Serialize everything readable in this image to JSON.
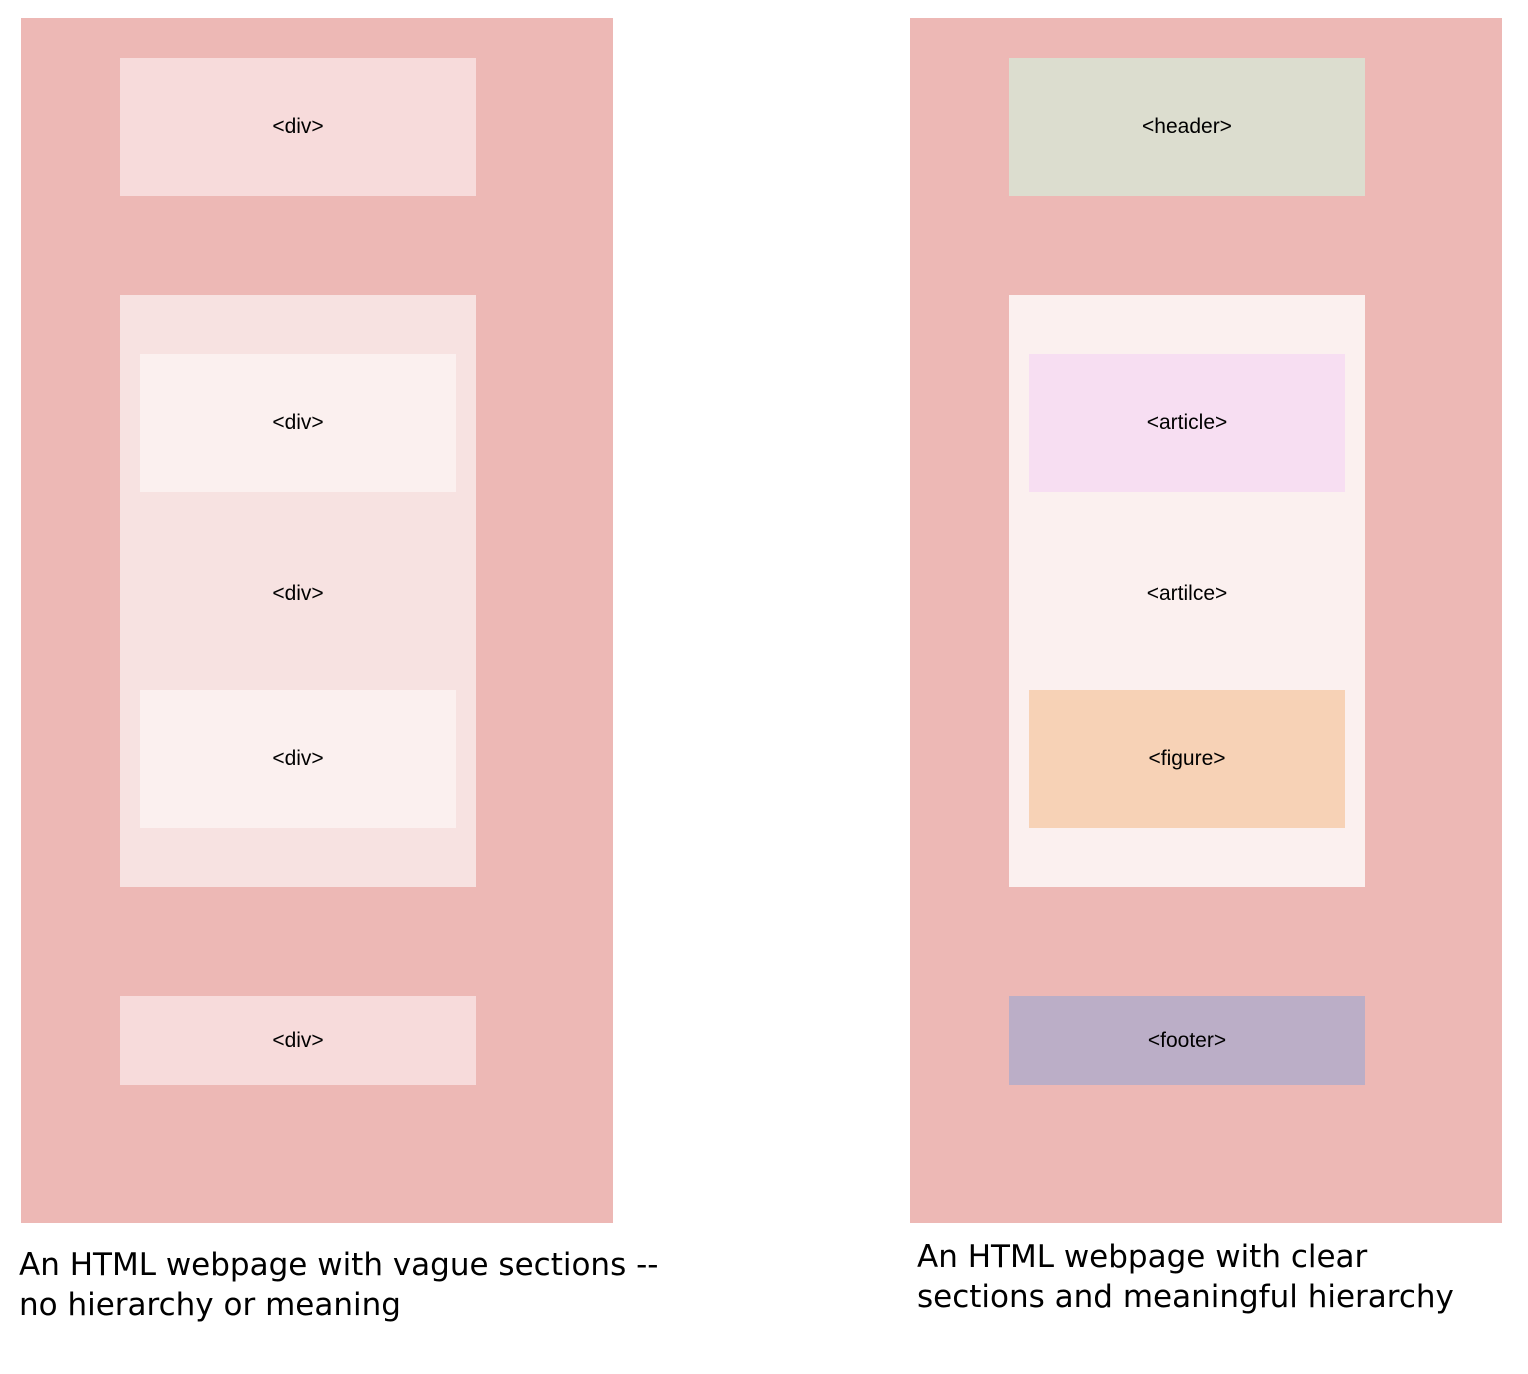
{
  "left": {
    "top_label": "<div>",
    "main_label": "<div>",
    "inner_top_label": "<div>",
    "inner_middle_label": "<div>",
    "inner_bottom_label": "<div>",
    "bottom_label": "<div>",
    "caption": "An HTML webpage with vague sections -- no hierarchy or meaning",
    "colors": {
      "panel": "#edb8b5",
      "top": "#f7dbdb",
      "main": "#f7e2e1",
      "inner": "#fbf0ef",
      "bottom": "#f7dbdb"
    }
  },
  "right": {
    "top_label": "<header>",
    "inner_top_label": "<article>",
    "inner_middle_label": "<artilce>",
    "inner_bottom_label": "<figure>",
    "bottom_label": "<footer>",
    "caption": "An HTML webpage with clear sections and meaningful hierarchy",
    "colors": {
      "panel": "#edb8b5",
      "top": "#dcddcf",
      "main": "#fbf0ef",
      "inner_top": "#f7def2",
      "inner_bottom": "#f7d2b6",
      "bottom": "#bbaec7"
    }
  }
}
